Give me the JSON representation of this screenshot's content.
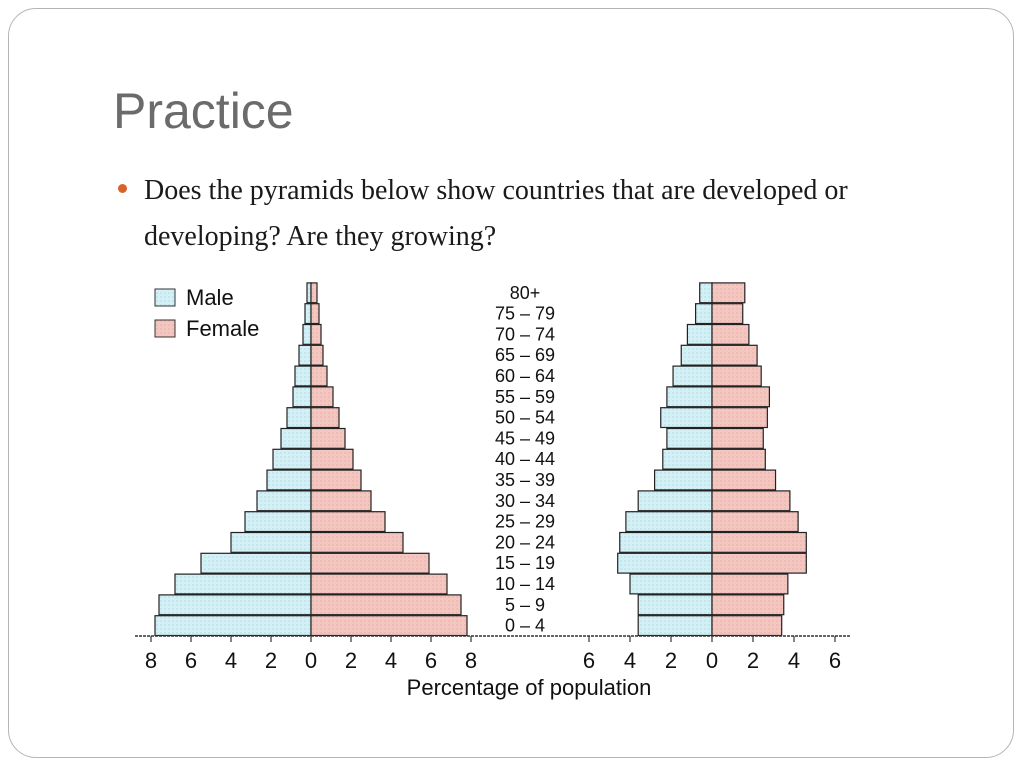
{
  "slide": {
    "title": "Practice",
    "bullet_text": "Does the pyramids below show countries that are developed or developing?  Are they growing?"
  },
  "colors": {
    "male": "#d2f0f6",
    "female": "#f4c6c0",
    "bullet": "#d9622b",
    "title": "#6b6b6b"
  },
  "chart_data": [
    {
      "type": "bar",
      "orientation": "horizontal-population-pyramid",
      "categories": [
        "0 – 4",
        "5 – 9",
        "10 – 14",
        "15 – 19",
        "20 – 24",
        "25 – 29",
        "30 – 34",
        "35 – 39",
        "40 – 44",
        "45 – 49",
        "50 – 54",
        "55 – 59",
        "60 – 64",
        "65 – 69",
        "70 – 74",
        "75 – 79",
        "80+"
      ],
      "series": [
        {
          "name": "Male",
          "values": [
            7.8,
            7.6,
            6.8,
            5.5,
            4.0,
            3.3,
            2.7,
            2.2,
            1.9,
            1.5,
            1.2,
            0.9,
            0.8,
            0.6,
            0.4,
            0.3,
            0.2
          ]
        },
        {
          "name": "Female",
          "values": [
            7.8,
            7.5,
            6.8,
            5.9,
            4.6,
            3.7,
            3.0,
            2.5,
            2.1,
            1.7,
            1.4,
            1.1,
            0.8,
            0.6,
            0.5,
            0.4,
            0.3
          ]
        }
      ],
      "xlim": [
        -8,
        8
      ],
      "xticks": [
        "8",
        "6",
        "4",
        "2",
        "0",
        "2",
        "4",
        "6",
        "8"
      ]
    },
    {
      "type": "bar",
      "orientation": "horizontal-population-pyramid",
      "categories": [
        "0 – 4",
        "5 – 9",
        "10 – 14",
        "15 – 19",
        "20 – 24",
        "25 – 29",
        "30 – 34",
        "35 – 39",
        "40 – 44",
        "45 – 49",
        "50 – 54",
        "55 – 59",
        "60 – 64",
        "65 – 69",
        "70 – 74",
        "75 – 79",
        "80+"
      ],
      "series": [
        {
          "name": "Male",
          "values": [
            3.6,
            3.6,
            4.0,
            4.6,
            4.5,
            4.2,
            3.6,
            2.8,
            2.4,
            2.2,
            2.5,
            2.2,
            1.9,
            1.5,
            1.2,
            0.8,
            0.6
          ]
        },
        {
          "name": "Female",
          "values": [
            3.4,
            3.5,
            3.7,
            4.6,
            4.6,
            4.2,
            3.8,
            3.1,
            2.6,
            2.5,
            2.7,
            2.8,
            2.4,
            2.2,
            1.8,
            1.5,
            1.6
          ]
        }
      ],
      "xlim": [
        -6,
        6
      ],
      "xticks": [
        "6",
        "4",
        "2",
        "0",
        "2",
        "4",
        "6"
      ]
    }
  ],
  "legend": {
    "male": "Male",
    "female": "Female"
  },
  "xlabel": "Percentage of population"
}
